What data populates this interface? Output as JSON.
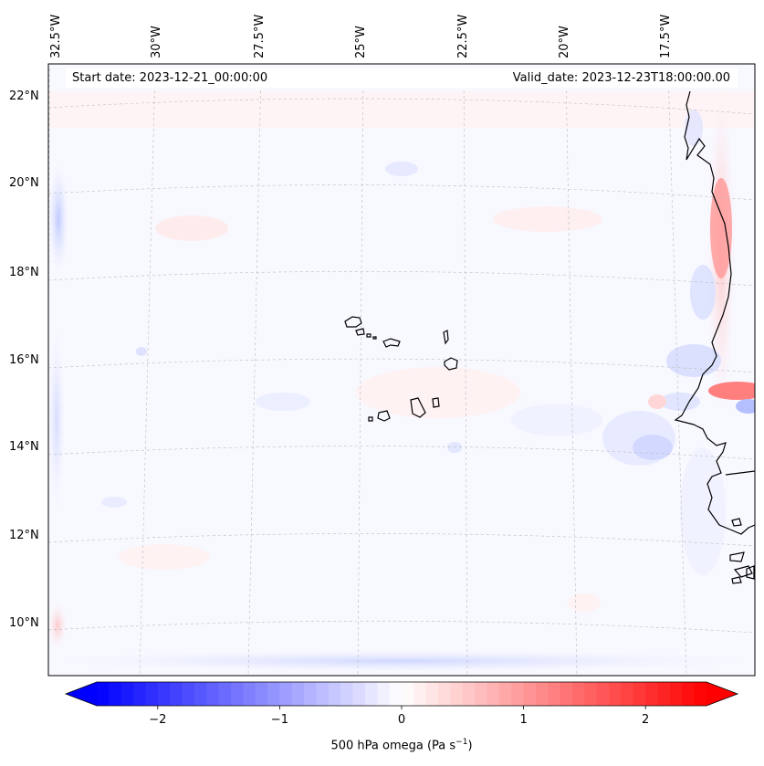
{
  "map": {
    "start_date": "Start date: 2023-12-21_00:00:00",
    "valid_date": "Valid_date: 2023-12-23T18:00:00.00",
    "lon_labels": [
      "32.5°W",
      "30°W",
      "27.5°W",
      "25°W",
      "22.5°W",
      "20°W",
      "17.5°W"
    ],
    "lat_labels": [
      "22°N",
      "20°N",
      "18°N",
      "16°N",
      "14°N",
      "12°N",
      "10°N"
    ],
    "field": "500 hPa omega",
    "coastline_color": "#000000",
    "gridline_color": "#bbbbbb"
  },
  "colorbar": {
    "label_prefix": "500 hPa omega (Pa s",
    "label_exponent": "−1",
    "label_suffix": ")",
    "ticks": [
      {
        "label": "−2",
        "value": -2
      },
      {
        "label": "−1",
        "value": -1
      },
      {
        "label": "0",
        "value": 0
      },
      {
        "label": "1",
        "value": 1
      },
      {
        "label": "2",
        "value": 2
      }
    ],
    "range": [
      -2.5,
      2.5
    ],
    "extend": "both",
    "cmap": "bwr",
    "color_min": "#0000ff",
    "color_mid": "#ffffff",
    "color_max": "#ff0000"
  }
}
